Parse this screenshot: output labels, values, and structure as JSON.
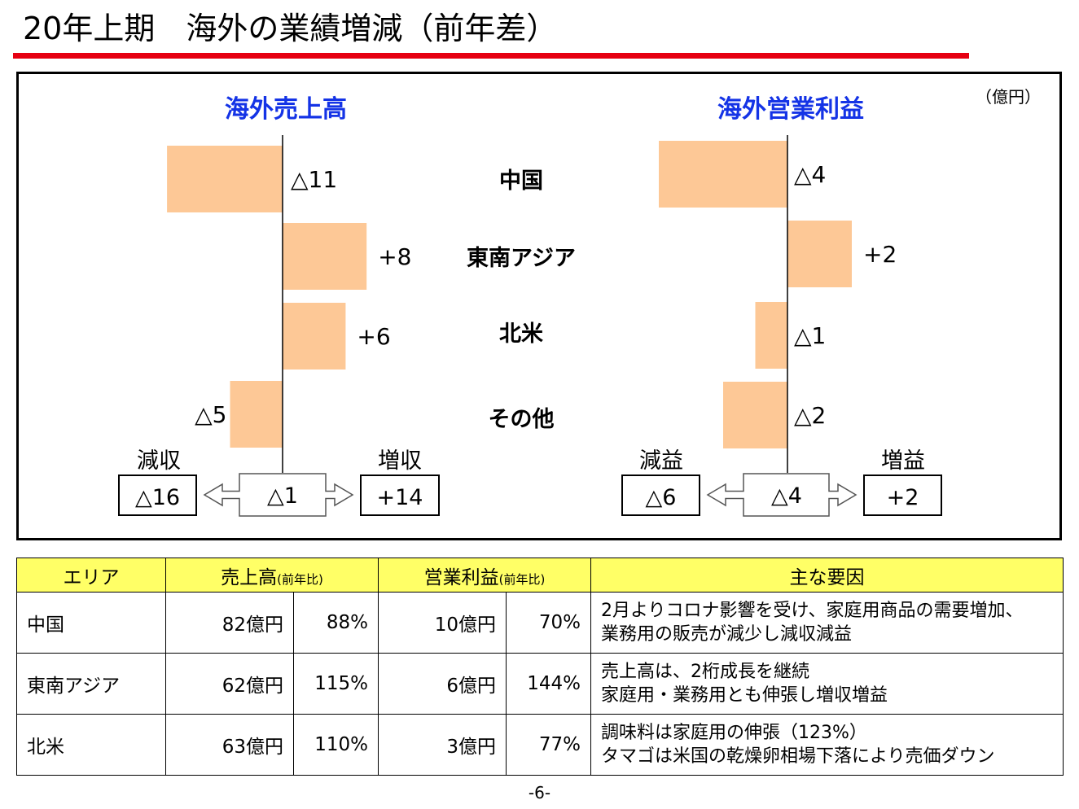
{
  "page": {
    "title": "20年上期　海外の業績増減（前年差）",
    "unit": "（億円）",
    "page_number": "-6-",
    "colors": {
      "accent_rule": "#e60012",
      "bar_fill": "#fdc896",
      "chart_title": "#1433e6",
      "table_header_bg": "#ffff66"
    }
  },
  "chart_data": [
    {
      "type": "bar",
      "orientation": "horizontal",
      "title": "海外売上高",
      "categories": [
        "中国",
        "東南アジア",
        "北米",
        "その他"
      ],
      "values": [
        -11,
        8,
        6,
        -5
      ],
      "value_labels": [
        "△11",
        "+8",
        "+6",
        "△5"
      ],
      "summary": {
        "decrease_label": "減収",
        "decrease_value": "△16",
        "total_value": "△1",
        "increase_label": "増収",
        "increase_value": "+14"
      }
    },
    {
      "type": "bar",
      "orientation": "horizontal",
      "title": "海外営業利益",
      "categories": [
        "中国",
        "東南アジア",
        "北米",
        "その他"
      ],
      "values": [
        -4,
        2,
        -1,
        -2
      ],
      "value_labels": [
        "△4",
        "+2",
        "△1",
        "△2"
      ],
      "summary": {
        "decrease_label": "減益",
        "decrease_value": "△6",
        "total_value": "△4",
        "increase_label": "増益",
        "increase_value": "+2"
      }
    }
  ],
  "table": {
    "headers": {
      "area": "エリア",
      "sales": "売上高",
      "sales_sub": "(前年比)",
      "profit": "営業利益",
      "profit_sub": "(前年比)",
      "reason": "主な要因"
    },
    "rows": [
      {
        "area": "中国",
        "sales": "82億円",
        "sales_pct": "88%",
        "profit": "10億円",
        "profit_pct": "70%",
        "reason1": "2月よりコロナ影響を受け、家庭用商品の需要増加、",
        "reason2": "業務用の販売が減少し減収減益"
      },
      {
        "area": "東南アジア",
        "sales": "62億円",
        "sales_pct": "115%",
        "profit": "6億円",
        "profit_pct": "144%",
        "reason1": "売上高は、2桁成長を継続",
        "reason2": "家庭用・業務用とも伸張し増収増益"
      },
      {
        "area": "北米",
        "sales": "63億円",
        "sales_pct": "110%",
        "profit": "3億円",
        "profit_pct": "77%",
        "reason1": "調味料は家庭用の伸張（123%）",
        "reason2": "タマゴは米国の乾燥卵相場下落により売価ダウン"
      }
    ]
  }
}
